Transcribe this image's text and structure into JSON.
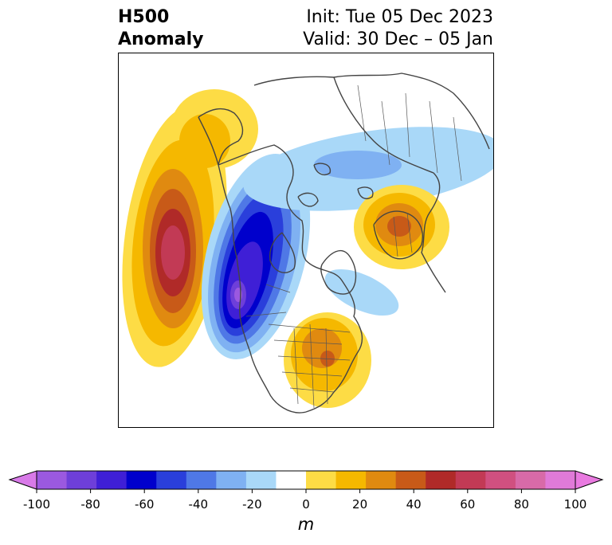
{
  "title": {
    "left_line1": "H500",
    "left_line2": "Anomaly",
    "right_line1": "Init: Tue 05 Dec 2023",
    "right_line2": "Valid: 30 Dec – 05 Jan"
  },
  "colorbar": {
    "unit": "m",
    "min": -100,
    "max": 100,
    "tick_labels": [
      "-100",
      "-80",
      "-60",
      "-40",
      "-20",
      "0",
      "20",
      "40",
      "60",
      "80",
      "100"
    ],
    "tick_values": [
      -100,
      -80,
      -60,
      -40,
      -20,
      0,
      20,
      40,
      60,
      80,
      100
    ],
    "bounds": [
      -100,
      -90,
      -80,
      -70,
      -60,
      -50,
      -40,
      -30,
      -20,
      -10,
      10,
      20,
      30,
      40,
      50,
      60,
      70,
      80,
      90,
      100
    ],
    "colors": [
      "#9b59e0",
      "#6e3fd9",
      "#3f1fd6",
      "#0000cc",
      "#2a3fdb",
      "#4f78e6",
      "#7fb1f2",
      "#a9d8f8",
      "#ffffff",
      "#fddc45",
      "#f5b800",
      "#e08a10",
      "#c85a18",
      "#b02a28",
      "#c23a55",
      "#d05080",
      "#d86aa8",
      "#e07ad8"
    ],
    "under_color": "#d87ae8",
    "over_color": "#e97ae0"
  },
  "map": {
    "features": [
      {
        "name": "positive-anomaly-north-pacific",
        "peak": 70
      },
      {
        "name": "negative-anomaly-western-canada",
        "peak": -80
      },
      {
        "name": "positive-anomaly-scandinavia",
        "peak": 50
      },
      {
        "name": "positive-anomaly-eastern-us",
        "peak": 40
      },
      {
        "name": "negative-anomaly-siberia",
        "peak": -30
      },
      {
        "name": "negative-anomaly-greenland-atlantic",
        "peak": -20
      },
      {
        "name": "positive-anomaly-bering-alaska",
        "peak": 20
      }
    ]
  }
}
